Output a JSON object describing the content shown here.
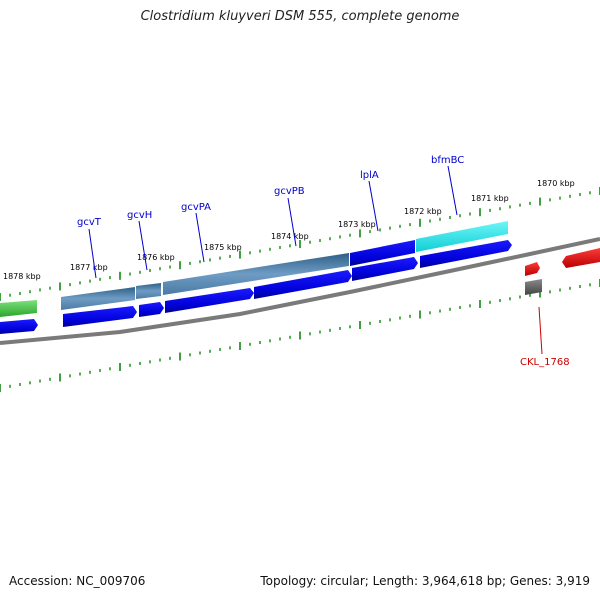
{
  "title": "Clostridium kluyveri DSM 555, complete genome",
  "footer": {
    "accession": "Accession: NC_009706",
    "stats": "Topology: circular; Length: 3,964,618 bp; Genes: 3,919"
  },
  "ticks": [
    "1878 kbp",
    "1877 kbp",
    "1876 kbp",
    "1875 kbp",
    "1874 kbp",
    "1873 kbp",
    "1872 kbp",
    "1871 kbp",
    "1870 kbp"
  ],
  "genes": [
    "gcvT",
    "gcvH",
    "gcvPA",
    "gcvPB",
    "lplA",
    "bfmBC",
    "CKL_1768"
  ],
  "colors": {
    "operon_blue": "#4f7fa8",
    "operon_dark": "#2a5b86",
    "gene_blue": "#0000e0",
    "gene_cyan": "#19e0e6",
    "gene_green": "#3fbf3f",
    "gene_red": "#e00000",
    "gene_grey": "#666666",
    "tick_green": "#118811",
    "label_blue": "#0000cc",
    "label_red": "#cc0000"
  }
}
